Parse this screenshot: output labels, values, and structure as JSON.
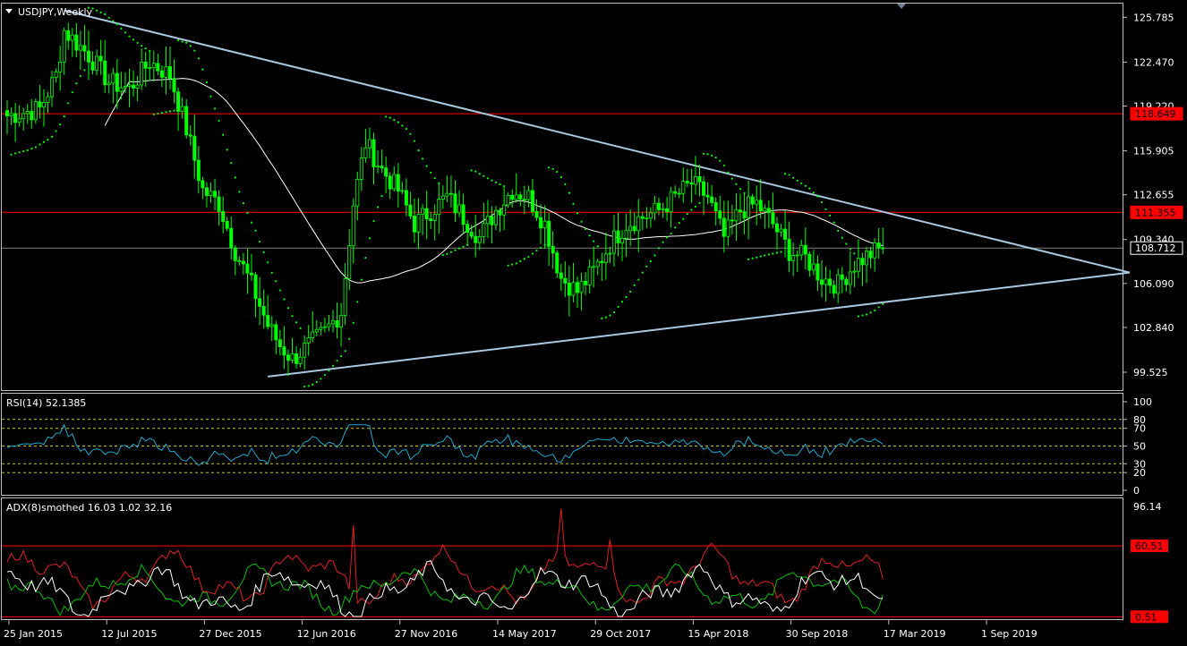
{
  "window": {
    "title": "USDJPY,Weekly",
    "menu_icon": "triangle-down-icon",
    "shift_marker_icon": "triangle-down-icon"
  },
  "colors": {
    "background": "#000000",
    "frame": "#c0c0c0",
    "candle": "#00ff00",
    "sar": "#00ff00",
    "ma": "#ffffff",
    "trendline": "#a8c8e0",
    "level": "#ff0000",
    "rsi": "#1fa8c8",
    "rsi_levels": "#c8c800",
    "adx": "#ffffff",
    "plus_di": "#00c000",
    "minus_di": "#e02020",
    "tag_bg": "#ff0000",
    "current_tag_bg": "#000000"
  },
  "main_panel": {
    "y_ticks": [
      "125.785",
      "122.470",
      "119.220",
      "115.905",
      "112.655",
      "109.340",
      "106.090",
      "102.840",
      "99.525"
    ],
    "level_lines": [
      {
        "value": 118.649,
        "label": "118.649"
      },
      {
        "value": 111.355,
        "label": "111.355"
      }
    ],
    "current_price": {
      "value": 108.712,
      "label": "108.712"
    }
  },
  "rsi_panel": {
    "title": "RSI(14) 52.1385",
    "value": 52.1385,
    "y_ticks": [
      "100",
      "80",
      "70",
      "50",
      "30",
      "20",
      "0"
    ],
    "levels": [
      80,
      70,
      50,
      30,
      20
    ]
  },
  "adx_panel": {
    "title": "ADX(8)smothed 16.03 1.02 32.16",
    "adx": 16.03,
    "plus_di": 1.02,
    "minus_di": 32.16,
    "top_label": "96.14",
    "level_lines": [
      {
        "value": 60.51,
        "label": "60.51"
      },
      {
        "value": 0.51,
        "label": "0.51"
      }
    ]
  },
  "time_axis": [
    "25 Jan 2015",
    "12 Jul 2015",
    "27 Dec 2015",
    "12 Jun 2016",
    "27 Nov 2016",
    "14 May 2017",
    "29 Oct 2017",
    "15 Apr 2018",
    "30 Sep 2018",
    "17 Mar 2019",
    "1 Sep 2019"
  ],
  "chart_data": {
    "type": "candlestick",
    "symbol": "USDJPY",
    "timeframe": "Weekly",
    "anchors": [
      [
        0,
        118.5
      ],
      [
        8,
        119.0
      ],
      [
        12,
        121.5
      ],
      [
        14,
        124.8
      ],
      [
        20,
        123.0
      ],
      [
        25,
        121.0
      ],
      [
        30,
        120.5
      ],
      [
        35,
        122.5
      ],
      [
        40,
        121.5
      ],
      [
        44,
        117.5
      ],
      [
        48,
        113.0
      ],
      [
        52,
        112.0
      ],
      [
        56,
        108.5
      ],
      [
        60,
        106.0
      ],
      [
        64,
        103.0
      ],
      [
        67,
        101.5
      ],
      [
        70,
        100.5
      ],
      [
        74,
        101.5
      ],
      [
        78,
        102.5
      ],
      [
        82,
        104.0
      ],
      [
        85,
        112.0
      ],
      [
        88,
        116.5
      ],
      [
        92,
        114.5
      ],
      [
        96,
        113.0
      ],
      [
        100,
        110.5
      ],
      [
        104,
        111.5
      ],
      [
        108,
        112.5
      ],
      [
        112,
        111.0
      ],
      [
        116,
        109.5
      ],
      [
        120,
        111.5
      ],
      [
        124,
        113.0
      ],
      [
        128,
        112.5
      ],
      [
        132,
        110.5
      ],
      [
        136,
        106.5
      ],
      [
        140,
        105.5
      ],
      [
        144,
        107.0
      ],
      [
        148,
        109.0
      ],
      [
        152,
        110.5
      ],
      [
        156,
        111.0
      ],
      [
        160,
        111.5
      ],
      [
        164,
        112.5
      ],
      [
        168,
        113.5
      ],
      [
        172,
        112.5
      ],
      [
        176,
        109.5
      ],
      [
        180,
        111.5
      ],
      [
        184,
        112.0
      ],
      [
        188,
        110.5
      ],
      [
        192,
        108.5
      ],
      [
        196,
        108.0
      ],
      [
        200,
        106.5
      ],
      [
        204,
        106.0
      ],
      [
        208,
        107.5
      ],
      [
        212,
        108.3
      ],
      [
        215,
        108.7
      ]
    ]
  }
}
